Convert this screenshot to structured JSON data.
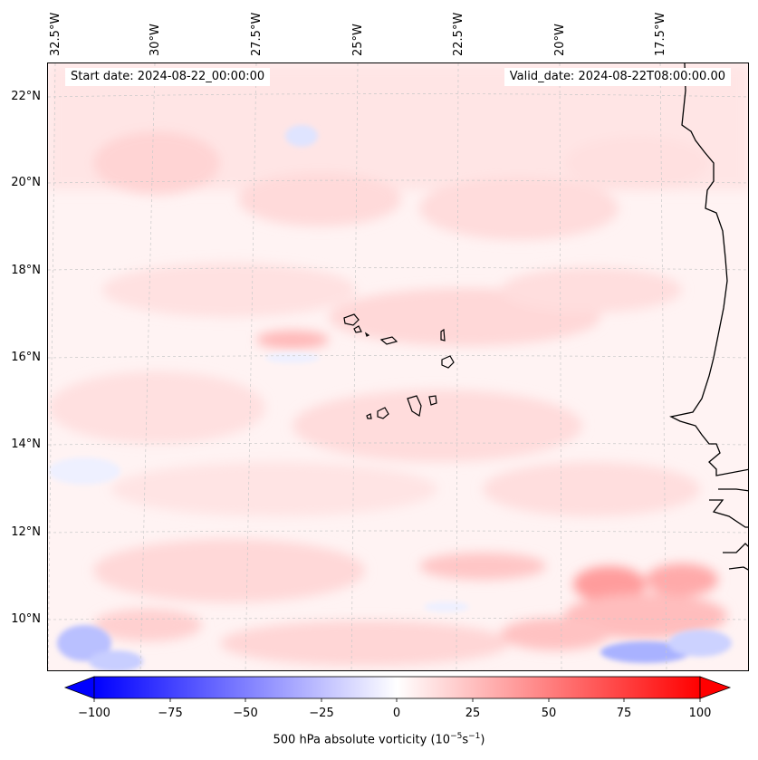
{
  "map": {
    "start_date": "Start date: 2024-08-22_00:00:00",
    "valid_date": "Valid_date: 2024-08-22T08:00:00.00",
    "lon_labels": [
      "32.5°W",
      "30°W",
      "27.5°W",
      "25°W",
      "22.5°W",
      "20°W",
      "17.5°W"
    ],
    "lat_labels": [
      "22°N",
      "20°N",
      "18°N",
      "16°N",
      "14°N",
      "12°N",
      "10°N"
    ],
    "field": "500 hPa absolute vorticity",
    "colormap": "bwr",
    "coastline_color": "#000000"
  },
  "colorbar": {
    "ticks": [
      "−100",
      "−75",
      "−50",
      "−25",
      "0",
      "25",
      "50",
      "75",
      "100"
    ],
    "min": -100,
    "max": 100,
    "label_main": "500 hPa absolute vorticity (10",
    "label_exp1": "−5",
    "label_mid": "s",
    "label_exp2": "−1",
    "label_end": ")",
    "low_color": "#0000ff",
    "mid_color": "#ffffff",
    "high_color": "#ff0000"
  }
}
